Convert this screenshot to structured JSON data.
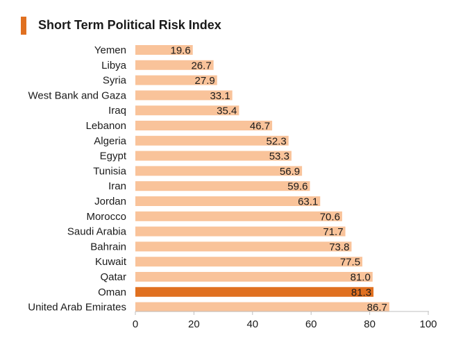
{
  "chart_data": {
    "type": "bar",
    "orientation": "horizontal",
    "title": "Short Term Political Risk Index",
    "categories": [
      "Yemen",
      "Libya",
      "Syria",
      "West Bank and Gaza",
      "Iraq",
      "Lebanon",
      "Algeria",
      "Egypt",
      "Tunisia",
      "Iran",
      "Jordan",
      "Morocco",
      "Saudi Arabia",
      "Bahrain",
      "Kuwait",
      "Qatar",
      "Oman",
      "United Arab Emirates"
    ],
    "values": [
      19.6,
      26.7,
      27.9,
      33.1,
      35.4,
      46.7,
      52.3,
      53.3,
      56.9,
      59.6,
      63.1,
      70.6,
      71.7,
      73.8,
      77.5,
      81.0,
      81.3,
      86.7
    ],
    "value_labels": [
      "19.6",
      "26.7",
      "27.9",
      "33.1",
      "35.4",
      "46.7",
      "52.3",
      "53.3",
      "56.9",
      "59.6",
      "63.1",
      "70.6",
      "71.7",
      "73.8",
      "77.5",
      "81.0",
      "81.3",
      "86.7"
    ],
    "highlighted_category": "Oman",
    "xlim": [
      0,
      100
    ],
    "xticks": [
      "0",
      "20",
      "40",
      "60",
      "80",
      "100"
    ],
    "xlabel": "",
    "ylabel": "",
    "grid": false,
    "colors": {
      "bar": "#f9c39a",
      "highlight": "#e07020",
      "accent": "#e07020"
    }
  }
}
